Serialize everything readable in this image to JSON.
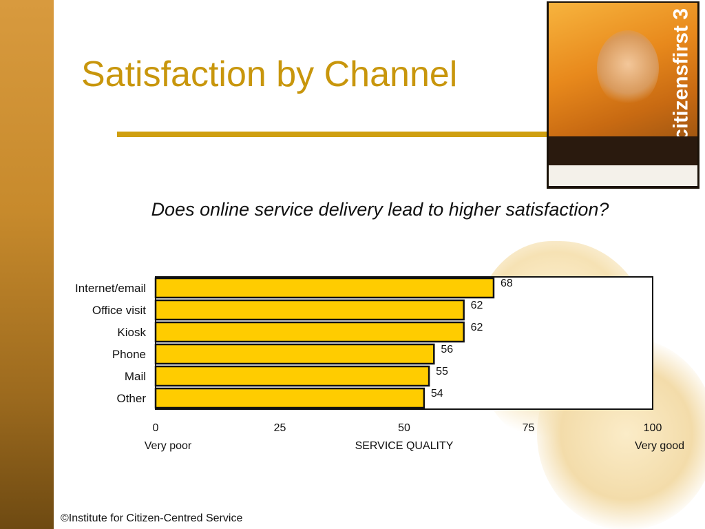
{
  "slide": {
    "title": "Satisfaction by Channel",
    "question": "Does online service delivery lead to higher satisfaction?",
    "footer": "©Institute for Citizen-Centred Service"
  },
  "cover_image": {
    "brand_text": "citizensfirst 3"
  },
  "colors": {
    "accent": "#c8960c",
    "bar_fill": "#ffcc00",
    "side_band": "#c78a2c"
  },
  "chart_data": {
    "type": "bar",
    "orientation": "horizontal",
    "categories": [
      "Internet/email",
      "Office visit",
      "Kiosk",
      "Phone",
      "Mail",
      "Other"
    ],
    "values": [
      68,
      62,
      62,
      56,
      55,
      54
    ],
    "xlim": [
      0,
      100
    ],
    "xticks": [
      0,
      25,
      50,
      75,
      100
    ],
    "xlabel": "SERVICE QUALITY",
    "x_low_label": "Very poor",
    "x_high_label": "Very good",
    "data_labels": true,
    "grid": false
  }
}
